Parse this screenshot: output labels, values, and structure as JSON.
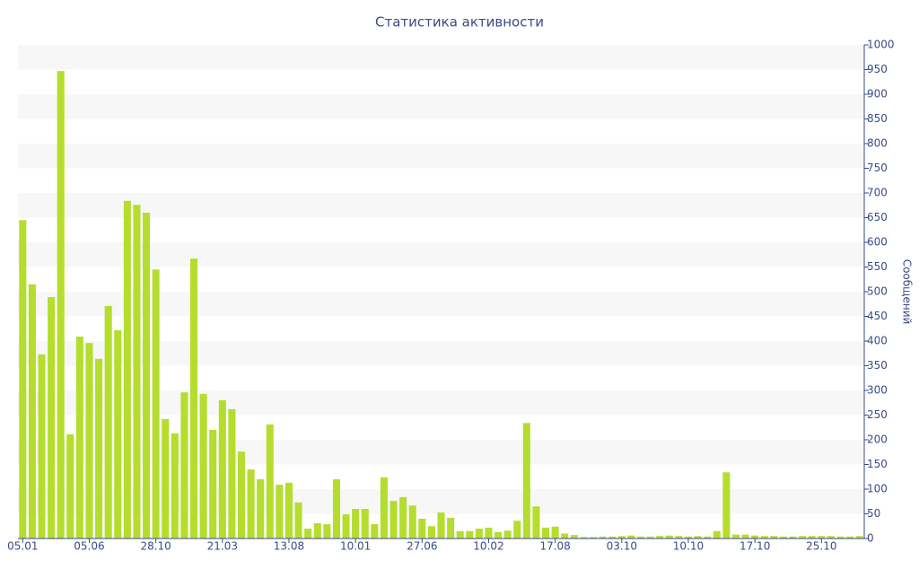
{
  "chart_data": {
    "type": "bar",
    "title": "Статистика активности",
    "y_label": "Сообщений",
    "categories": [
      "05.01",
      null,
      null,
      null,
      null,
      null,
      null,
      "05.06",
      null,
      null,
      null,
      null,
      null,
      null,
      "28.10",
      null,
      null,
      null,
      null,
      null,
      null,
      "21.03",
      null,
      null,
      null,
      null,
      null,
      null,
      "13.08",
      null,
      null,
      null,
      null,
      null,
      null,
      "10.01",
      null,
      null,
      null,
      null,
      null,
      null,
      "27.06",
      null,
      null,
      null,
      null,
      null,
      null,
      "10.02",
      null,
      null,
      null,
      null,
      null,
      null,
      "17.08",
      null,
      null,
      null,
      null,
      null,
      null,
      "03.10",
      null,
      null,
      null,
      null,
      null,
      null,
      "10.10",
      null,
      null,
      null,
      null,
      null,
      null,
      "17.10",
      null,
      null,
      null,
      null,
      null,
      null,
      "25.10",
      null,
      null,
      null,
      null
    ],
    "values": [
      645,
      515,
      373,
      489,
      947,
      211,
      409,
      396,
      364,
      471,
      422,
      684,
      676,
      660,
      545,
      242,
      213,
      296,
      567,
      293,
      220,
      280,
      262,
      176,
      140,
      120,
      231,
      109,
      113,
      73,
      20,
      31,
      29,
      120,
      49,
      60,
      60,
      29,
      124,
      76,
      84,
      67,
      40,
      25,
      53,
      42,
      15,
      15,
      20,
      22,
      13,
      16,
      36,
      234,
      65,
      22,
      24,
      10,
      7,
      3,
      3,
      4,
      4,
      5,
      6,
      4,
      4,
      5,
      6,
      5,
      4,
      5,
      4,
      15,
      134,
      8,
      8,
      6,
      5,
      5,
      4,
      4,
      5,
      5,
      5,
      5,
      4,
      4,
      5
    ],
    "color": "#b5dd2e",
    "ylim": [
      0,
      1000
    ],
    "yticks": [
      0,
      50,
      100,
      150,
      200,
      250,
      300,
      350,
      400,
      450,
      500,
      550,
      600,
      650,
      700,
      750,
      800,
      850,
      900,
      950,
      1000
    ],
    "grid": true
  }
}
